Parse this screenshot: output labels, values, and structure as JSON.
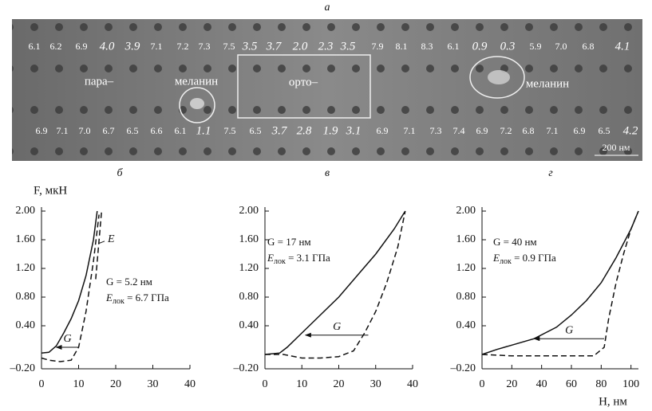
{
  "figure": {
    "label": "а",
    "top_row": [
      "6.1",
      "6.2",
      "6.9",
      "4.0",
      "3.9",
      "7.1",
      "7.2",
      "7.3",
      "7.5",
      "3.5",
      "3.7",
      "2.0",
      "2.3",
      "3.5",
      "7.9",
      "8.1",
      "8.3",
      "6.1",
      "0.9",
      "0.3",
      "5.9",
      "7.0",
      "6.8",
      "4.1"
    ],
    "bottom_row": [
      "6.9",
      "7.1",
      "7.0",
      "6.7",
      "6.5",
      "6.6",
      "6.1",
      "1.1",
      "7.5",
      "6.5",
      "3.7",
      "2.8",
      "1.9",
      "3.1",
      "6.9",
      "7.1",
      "7.3",
      "7.4",
      "6.9",
      "7.2",
      "6.8",
      "7.1",
      "6.9",
      "6.5",
      "4.2"
    ],
    "labels": {
      "para": "пара–",
      "melanin_left": "меланин",
      "ortho": "орто–",
      "melanin_right": "меланин"
    },
    "scale_bar": "200 нм"
  },
  "chart_data": [
    {
      "type": "line",
      "label": "б",
      "ylabel": "F, мкН",
      "xlim": [
        0,
        40
      ],
      "xticks": [
        0,
        10,
        20,
        30,
        40
      ],
      "ylim": [
        -0.2,
        2.0
      ],
      "yticks": [
        {
          "value": 2.0,
          "label": "2.00"
        },
        {
          "value": 1.6,
          "label": "1.60"
        },
        {
          "value": 1.2,
          "label": "1.20"
        },
        {
          "value": 0.8,
          "label": "0.80"
        },
        {
          "value": 0.4,
          "label": "0.40"
        },
        {
          "value": -0.2,
          "label": "–0.20"
        }
      ],
      "series": [
        {
          "style": "solid",
          "color": "#111",
          "x": [
            0,
            2,
            4,
            6,
            8,
            10,
            12,
            14,
            15
          ],
          "values": [
            0.02,
            0.03,
            0.12,
            0.3,
            0.5,
            0.75,
            1.1,
            1.6,
            2.0
          ]
        },
        {
          "style": "dashed",
          "color": "#111",
          "x": [
            0,
            2,
            5,
            8,
            10,
            12,
            14,
            15.5
          ],
          "values": [
            -0.05,
            -0.08,
            -0.1,
            -0.08,
            0.1,
            0.6,
            1.3,
            1.95
          ]
        },
        {
          "style": "dashed",
          "color": "#111",
          "x": [
            14.6,
            16.2
          ],
          "values": [
            1.05,
            2.0
          ]
        }
      ],
      "gap": {
        "x": [
          10,
          4
        ],
        "y": 0.1,
        "label": "G"
      },
      "tangent_label": "E",
      "g_text": "G = 5.2 нм",
      "e_text": {
        "symbol": "E",
        "subscript": "лок",
        "rest": " = 6.7 ГПа"
      }
    },
    {
      "type": "line",
      "label": "в",
      "xlim": [
        0,
        40
      ],
      "xticks": [
        0,
        10,
        20,
        30,
        40
      ],
      "ylim": [
        -0.2,
        2.0
      ],
      "yticks": [
        {
          "value": 2.0,
          "label": "2.00"
        },
        {
          "value": 1.6,
          "label": "1.60"
        },
        {
          "value": 1.2,
          "label": "1.20"
        },
        {
          "value": 0.8,
          "label": "0.80"
        },
        {
          "value": 0.4,
          "label": "0.40"
        },
        {
          "value": -0.2,
          "label": "–0.20"
        }
      ],
      "series": [
        {
          "style": "solid",
          "color": "#111",
          "x": [
            0,
            4,
            6,
            10,
            15,
            20,
            25,
            30,
            35,
            38
          ],
          "values": [
            0.0,
            0.02,
            0.1,
            0.3,
            0.55,
            0.8,
            1.1,
            1.4,
            1.75,
            2.0
          ]
        },
        {
          "style": "dashed",
          "color": "#111",
          "x": [
            0,
            5,
            10,
            15,
            20,
            24,
            27,
            30,
            33,
            36,
            38
          ],
          "values": [
            0.0,
            0.0,
            -0.05,
            -0.05,
            -0.03,
            0.05,
            0.3,
            0.6,
            1.0,
            1.5,
            2.0
          ]
        }
      ],
      "gap": {
        "x": [
          28,
          11
        ],
        "y": 0.27,
        "label": "G"
      },
      "g_text": "G = 17 нм",
      "e_text": {
        "symbol": "E",
        "subscript": "лок",
        "rest": " = 3.1 ГПа"
      }
    },
    {
      "type": "line",
      "label": "г",
      "xlabel": "H, нм",
      "xlim": [
        0,
        105
      ],
      "xticks": [
        0,
        20,
        40,
        60,
        80,
        100
      ],
      "ylim": [
        -0.2,
        2.0
      ],
      "yticks": [
        {
          "value": 2.0,
          "label": "2.00"
        },
        {
          "value": 1.6,
          "label": "1.60"
        },
        {
          "value": 1.2,
          "label": "1.20"
        },
        {
          "value": 0.8,
          "label": "0.80"
        },
        {
          "value": 0.4,
          "label": "0.40"
        },
        {
          "value": -0.2,
          "label": "–0.20"
        }
      ],
      "series": [
        {
          "style": "solid",
          "color": "#111",
          "x": [
            0,
            10,
            20,
            35,
            50,
            60,
            70,
            80,
            90,
            100,
            105
          ],
          "values": [
            0.0,
            0.07,
            0.13,
            0.22,
            0.38,
            0.55,
            0.75,
            1.0,
            1.35,
            1.75,
            2.0
          ]
        },
        {
          "style": "dashed",
          "color": "#111",
          "x": [
            0,
            20,
            40,
            60,
            75,
            82,
            85,
            90,
            95,
            100,
            105
          ],
          "values": [
            0.0,
            -0.02,
            -0.02,
            -0.02,
            -0.02,
            0.1,
            0.5,
            1.0,
            1.4,
            1.75,
            2.0
          ]
        }
      ],
      "gap": {
        "x": [
          82,
          35
        ],
        "y": 0.22,
        "label": "G"
      },
      "g_text": "G = 40 нм",
      "e_text": {
        "symbol": "E",
        "subscript": "лок",
        "rest": " = 0.9 ГПа"
      }
    }
  ]
}
